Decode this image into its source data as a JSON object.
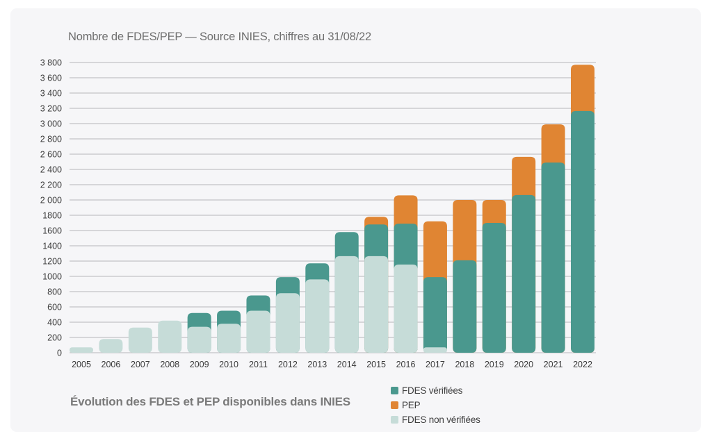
{
  "chart_data": {
    "type": "bar",
    "stacked": true,
    "title": "Nombre de FDES/PEP — Source INIES, chiffres au 31/08/22",
    "caption": "Évolution des FDES et PEP disponibles dans INIES",
    "xlabel": "",
    "ylabel": "",
    "ylim": [
      0,
      3800
    ],
    "yticks": [
      0,
      200,
      400,
      600,
      800,
      1000,
      1200,
      1400,
      1600,
      1800,
      2000,
      2200,
      2400,
      2600,
      2800,
      3000,
      3200,
      3400,
      3600,
      3800
    ],
    "ytick_labels": [
      "0",
      "200",
      "400",
      "600",
      "800",
      "1000",
      "1200",
      "1400",
      "1600",
      "1800",
      "2 000",
      "2 200",
      "2 400",
      "2 600",
      "2 800",
      "3 000",
      "3 200",
      "3 400",
      "3 600",
      "3 800"
    ],
    "grid": true,
    "legend_position": "bottom-right",
    "categories": [
      "2005",
      "2006",
      "2007",
      "2008",
      "2009",
      "2010",
      "2011",
      "2012",
      "2013",
      "2014",
      "2015",
      "2016",
      "2017",
      "2018",
      "2019",
      "2020",
      "2021",
      "2022"
    ],
    "series": [
      {
        "name": "FDES non vérifiées",
        "color": "#c6dcd8",
        "values": [
          70,
          180,
          330,
          420,
          340,
          380,
          550,
          780,
          960,
          1265,
          1265,
          1155,
          70,
          0,
          0,
          0,
          0,
          0
        ]
      },
      {
        "name": "FDES vérifiées",
        "color": "#4a988e",
        "values": [
          0,
          0,
          0,
          0,
          180,
          170,
          200,
          210,
          210,
          315,
          415,
          535,
          920,
          1210,
          1700,
          2065,
          2490,
          3165
        ]
      },
      {
        "name": "PEP",
        "color": "#e08533",
        "values": [
          0,
          0,
          0,
          0,
          0,
          0,
          0,
          0,
          0,
          0,
          100,
          370,
          730,
          790,
          300,
          500,
          500,
          605
        ]
      }
    ],
    "legend_order": [
      "FDES vérifiées",
      "PEP",
      "FDES non vérifiées"
    ]
  }
}
